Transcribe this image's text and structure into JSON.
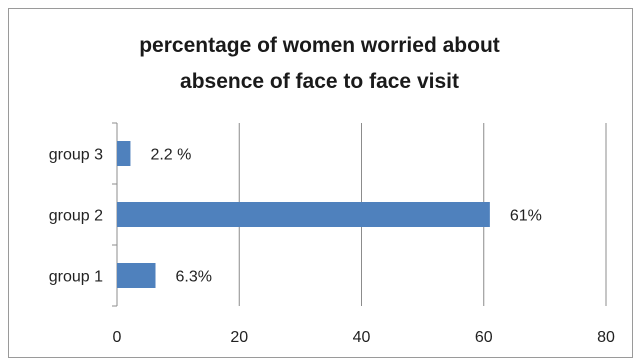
{
  "chart_data": {
    "type": "bar",
    "orientation": "horizontal",
    "title": [
      "percentage of women worried about",
      "absence of face to face visit"
    ],
    "categories": [
      "group 1",
      "group 2",
      "group 3"
    ],
    "values": [
      6.3,
      61,
      2.2
    ],
    "data_labels": [
      "6.3%",
      "61%",
      "2.2 %"
    ],
    "xlim": [
      0,
      80
    ],
    "x_ticks": [
      0,
      20,
      40,
      60,
      80
    ],
    "grid": "vertical",
    "legend": "none",
    "bar_color": "#4f81bd"
  }
}
